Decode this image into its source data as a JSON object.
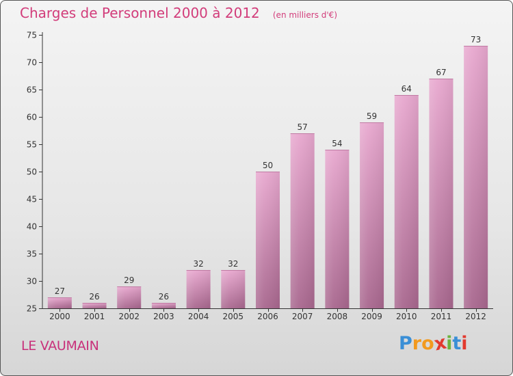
{
  "header": {
    "title": "Charges de Personnel 2000 à 2012",
    "subtitle": "(en milliers d'€)"
  },
  "commune": "LE VAUMAIN",
  "brand": {
    "letters": [
      "P",
      "r",
      "o",
      "x",
      "i",
      "t",
      "i"
    ],
    "colors": [
      "#3a8fd6",
      "#f29a1f",
      "#f29a1f",
      "#e23a2f",
      "#6cb33f",
      "#3a8fd6",
      "#e23a2f"
    ]
  },
  "colors": {
    "bar_top": "#e8a8cf",
    "bar_bottom": "#a8678e",
    "accent": "#d23c7a"
  },
  "chart_data": {
    "type": "bar",
    "categories": [
      "2000",
      "2001",
      "2002",
      "2003",
      "2004",
      "2005",
      "2006",
      "2007",
      "2008",
      "2009",
      "2010",
      "2011",
      "2012"
    ],
    "values": [
      27,
      26,
      29,
      26,
      32,
      32,
      50,
      57,
      54,
      59,
      64,
      67,
      73
    ],
    "value_labels": [
      "27",
      "26",
      "29",
      "26",
      "32",
      "32",
      "50",
      "57",
      "54",
      "59",
      "64",
      "67",
      "73"
    ],
    "ylim": [
      25,
      75
    ],
    "yticks": [
      25,
      30,
      35,
      40,
      45,
      50,
      55,
      60,
      65,
      70,
      75
    ],
    "ytick_labels": [
      "25",
      "30",
      "35",
      "40",
      "45",
      "50",
      "55",
      "60",
      "65",
      "70",
      "75"
    ],
    "grid": false,
    "legend": "none"
  }
}
